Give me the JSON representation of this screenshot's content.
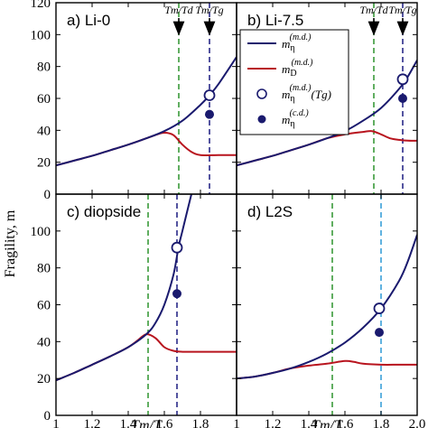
{
  "chart_data": {
    "type": "line",
    "ylabel": "Fragility, m",
    "xlabel": "Tm/T",
    "xlim": [
      1.0,
      2.0
    ],
    "ylim": [
      0,
      120
    ],
    "x_ticks": [
      "1",
      "1.2",
      "1.4",
      "1.6",
      "1.8",
      "2.0"
    ],
    "x_tick_values": [
      1.0,
      1.2,
      1.4,
      1.6,
      1.8,
      2.0
    ],
    "y_ticks_top": [
      "0",
      "20",
      "40",
      "60",
      "80",
      "100",
      "120"
    ],
    "y_ticks_bottom": [
      "0",
      "20",
      "40",
      "60",
      "80",
      "100"
    ],
    "y_tick_values": [
      0,
      20,
      40,
      60,
      80,
      100,
      120
    ],
    "colors": {
      "m_eta": "#1a1a6e",
      "m_D": "#b8141e",
      "green_line": "#3a9a3a",
      "blue_line": "#2a2a88",
      "cyan_line": "#3aa0d8"
    },
    "legend": {
      "entries": [
        {
          "symbol": "line-blue",
          "main": "m",
          "sub": "η",
          "sup": "(m.d.)",
          "suffix": ""
        },
        {
          "symbol": "line-red",
          "main": "m",
          "sub": "D",
          "sup": "(m.d.)",
          "suffix": ""
        },
        {
          "symbol": "open-circle",
          "main": "m",
          "sub": "η",
          "sup": "(m.d.)",
          "suffix": "(Tg)"
        },
        {
          "symbol": "filled-circle",
          "main": "m",
          "sub": "η",
          "sup": "(c.d.)",
          "suffix": ""
        }
      ]
    },
    "annotations": {
      "tm_td": "Tm/Td",
      "tm_tg": "Tm/Tg"
    },
    "panels": [
      {
        "label": "a) Li-0",
        "m_eta_x": [
          1.0,
          1.1,
          1.2,
          1.3,
          1.4,
          1.5,
          1.6,
          1.7,
          1.8,
          1.85,
          1.9,
          2.0
        ],
        "m_eta_y": [
          18,
          21,
          24,
          27.5,
          31,
          35,
          39.5,
          46,
          56,
          62,
          69,
          86
        ],
        "m_D_x": [
          1.0,
          1.1,
          1.2,
          1.3,
          1.4,
          1.5,
          1.55,
          1.6,
          1.65,
          1.7,
          1.75,
          1.8,
          1.9,
          2.0
        ],
        "m_D_y": [
          18,
          21,
          24,
          27.5,
          31,
          35,
          37,
          38.5,
          37,
          31,
          26.5,
          24.5,
          24.5,
          24.5
        ],
        "tm_td": 1.68,
        "tm_tg": 1.85,
        "open_circle": [
          1.85,
          62
        ],
        "filled_circle": [
          1.85,
          50
        ]
      },
      {
        "label": "b) Li-7.5",
        "m_eta_x": [
          1.0,
          1.1,
          1.2,
          1.3,
          1.4,
          1.5,
          1.6,
          1.7,
          1.8,
          1.9,
          1.95,
          2.0
        ],
        "m_eta_y": [
          18,
          21,
          24,
          27.5,
          31,
          35,
          39.5,
          46,
          54,
          66,
          74,
          84
        ],
        "m_D_x": [
          1.0,
          1.1,
          1.2,
          1.3,
          1.4,
          1.5,
          1.6,
          1.7,
          1.75,
          1.8,
          1.85,
          1.9,
          1.95,
          2.0
        ],
        "m_D_y": [
          18,
          21,
          24,
          27.5,
          31,
          35,
          37.5,
          39,
          39.5,
          37.5,
          35,
          34,
          33.5,
          33.5
        ],
        "tm_td": 1.76,
        "tm_tg": 1.92,
        "open_circle": [
          1.92,
          72
        ],
        "filled_circle": [
          1.92,
          60
        ]
      },
      {
        "label": "c) diopside",
        "m_eta_x": [
          1.0,
          1.1,
          1.2,
          1.3,
          1.4,
          1.5,
          1.55,
          1.6,
          1.65,
          1.68,
          1.7,
          1.75
        ],
        "m_eta_y": [
          19,
          23,
          27.5,
          32,
          37,
          44,
          50,
          60,
          76,
          92,
          100,
          120
        ],
        "m_D_x": [
          1.0,
          1.1,
          1.2,
          1.3,
          1.4,
          1.45,
          1.5,
          1.55,
          1.6,
          1.65,
          1.7,
          1.8,
          1.9,
          2.0
        ],
        "m_D_y": [
          19,
          23,
          27.5,
          32,
          37,
          40.5,
          44,
          42,
          37,
          35,
          34.5,
          34.5,
          34.5,
          34.5
        ],
        "tm_td": 1.51,
        "tm_tg": 1.67,
        "open_circle": [
          1.67,
          91
        ],
        "filled_circle": [
          1.67,
          66
        ]
      },
      {
        "label": "d) L2S",
        "m_eta_x": [
          1.0,
          1.1,
          1.2,
          1.3,
          1.4,
          1.5,
          1.6,
          1.7,
          1.8,
          1.9,
          1.95,
          2.0
        ],
        "m_eta_y": [
          20,
          21,
          23,
          25.5,
          29,
          33.5,
          39.5,
          47.5,
          58,
          73,
          84,
          98
        ],
        "m_D_x": [
          1.0,
          1.1,
          1.2,
          1.3,
          1.4,
          1.5,
          1.6,
          1.65,
          1.7,
          1.8,
          1.9,
          2.0
        ],
        "m_D_y": [
          20,
          21,
          23,
          25.5,
          27,
          28,
          29.5,
          29,
          28,
          27.5,
          27.5,
          27.5
        ],
        "tm_td": 1.53,
        "tm_tg": 1.8,
        "open_circle": [
          1.79,
          58
        ],
        "filled_circle": [
          1.79,
          45
        ]
      }
    ]
  }
}
